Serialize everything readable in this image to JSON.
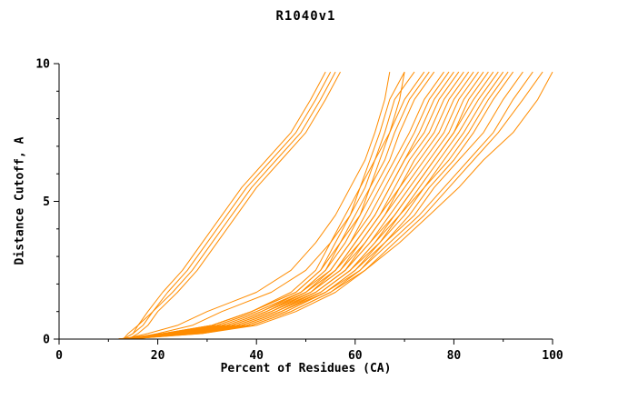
{
  "page": {
    "background": "#ffffff"
  },
  "chart_data": {
    "type": "line",
    "title": "R1040v1",
    "xlabel": "Percent of Residues (CA)",
    "ylabel": "Distance Cutoff, A",
    "xlim": [
      0,
      100
    ],
    "ylim": [
      0,
      10
    ],
    "x_ticks": [
      0,
      20,
      40,
      60,
      80,
      100
    ],
    "y_ticks": [
      0,
      5,
      10
    ],
    "x_minor_step": 10,
    "y_minor_step": 1,
    "grid": false,
    "legend": "none",
    "line_color": "#FF8C00",
    "axis_color": "#000000",
    "y_samples": [
      0,
      0.2,
      0.5,
      1,
      1.7,
      2.5,
      3.5,
      4.5,
      5.5,
      6.5,
      7.5,
      8.7,
      9.7
    ],
    "series": [
      {
        "x": [
          13,
          15,
          17,
          19,
          22,
          26,
          30,
          34,
          38,
          43,
          48,
          52,
          55
        ]
      },
      {
        "x": [
          13,
          14,
          16,
          18,
          21,
          25,
          29,
          33,
          37,
          42,
          47,
          51,
          54
        ]
      },
      {
        "x": [
          14,
          16,
          18,
          20,
          24,
          28,
          32,
          36,
          40,
          45,
          50,
          54,
          57
        ]
      },
      {
        "x": [
          13,
          15,
          16,
          19,
          23,
          27,
          31,
          35,
          39,
          44,
          49,
          53,
          56
        ]
      },
      {
        "x": [
          13,
          18,
          24,
          30,
          40,
          47,
          52,
          56,
          59,
          62,
          64,
          66,
          67
        ]
      },
      {
        "x": [
          14,
          20,
          27,
          33,
          43,
          50,
          55,
          59,
          62,
          64,
          67,
          69,
          70
        ]
      },
      {
        "x": [
          12,
          21,
          31,
          39,
          47,
          52,
          55,
          58,
          61,
          63,
          65,
          67,
          70
        ]
      },
      {
        "x": [
          13,
          21,
          31,
          39,
          48,
          53,
          56,
          59,
          61,
          64,
          66,
          68,
          72
        ]
      },
      {
        "x": [
          12,
          22,
          31,
          39,
          48,
          53,
          57,
          60,
          63,
          65,
          67,
          70,
          74
        ]
      },
      {
        "x": [
          14,
          22,
          32,
          40,
          49,
          54,
          57,
          61,
          63,
          66,
          68,
          71,
          75
        ]
      },
      {
        "x": [
          13,
          22,
          32,
          40,
          49,
          54,
          58,
          61,
          64,
          67,
          69,
          72,
          76
        ]
      },
      {
        "x": [
          12,
          23,
          33,
          41,
          49,
          55,
          59,
          62,
          65,
          68,
          71,
          74,
          78
        ]
      },
      {
        "x": [
          15,
          23,
          33,
          41,
          50,
          55,
          59,
          63,
          66,
          69,
          72,
          75,
          79
        ]
      },
      {
        "x": [
          13,
          23,
          34,
          42,
          50,
          56,
          60,
          64,
          67,
          70,
          73,
          76,
          80
        ]
      },
      {
        "x": [
          14,
          24,
          34,
          42,
          50,
          56,
          60,
          64,
          67,
          70,
          74,
          77,
          81
        ]
      },
      {
        "x": [
          12,
          24,
          34,
          42,
          51,
          56,
          61,
          65,
          68,
          71,
          75,
          78,
          82
        ]
      },
      {
        "x": [
          13,
          24,
          35,
          43,
          51,
          57,
          61,
          65,
          69,
          72,
          76,
          79,
          83
        ]
      },
      {
        "x": [
          14,
          25,
          35,
          43,
          51,
          57,
          62,
          66,
          69,
          73,
          77,
          80,
          84
        ]
      },
      {
        "x": [
          12,
          25,
          35,
          43,
          52,
          58,
          62,
          66,
          70,
          74,
          78,
          81,
          85
        ]
      },
      {
        "x": [
          13,
          25,
          36,
          44,
          52,
          58,
          63,
          67,
          71,
          75,
          79,
          82,
          86
        ]
      },
      {
        "x": [
          15,
          26,
          36,
          44,
          52,
          58,
          63,
          68,
          72,
          76,
          80,
          83,
          87
        ]
      },
      {
        "x": [
          12,
          26,
          36,
          44,
          53,
          59,
          64,
          68,
          72,
          76,
          80,
          84,
          88
        ]
      },
      {
        "x": [
          13,
          26,
          37,
          45,
          53,
          59,
          64,
          69,
          73,
          77,
          81,
          85,
          89
        ]
      },
      {
        "x": [
          14,
          27,
          37,
          45,
          53,
          59,
          65,
          69,
          74,
          78,
          82,
          86,
          90
        ]
      },
      {
        "x": [
          12,
          27,
          37,
          45,
          54,
          60,
          65,
          70,
          74,
          79,
          83,
          87,
          91
        ]
      },
      {
        "x": [
          13,
          27,
          38,
          46,
          54,
          60,
          66,
          71,
          75,
          80,
          84,
          88,
          92
        ]
      },
      {
        "x": [
          14,
          28,
          38,
          46,
          54,
          61,
          66,
          72,
          76,
          81,
          86,
          90,
          94
        ]
      },
      {
        "x": [
          12,
          28,
          39,
          47,
          55,
          61,
          67,
          73,
          78,
          83,
          88,
          92,
          96
        ]
      },
      {
        "x": [
          13,
          29,
          39,
          47,
          55,
          62,
          68,
          74,
          79,
          84,
          89,
          94,
          98
        ]
      },
      {
        "x": [
          14,
          29,
          40,
          48,
          56,
          62,
          69,
          75,
          81,
          86,
          92,
          97,
          100
        ]
      }
    ]
  }
}
